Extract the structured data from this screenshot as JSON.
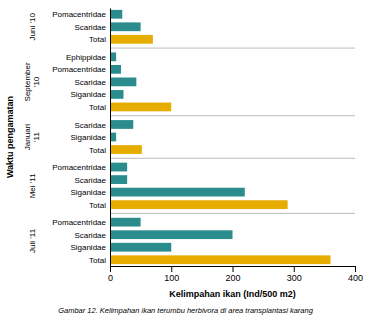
{
  "chart_data": {
    "type": "bar",
    "orientation": "horizontal",
    "groups": [
      {
        "label": "Juni '10",
        "categories": [
          "Pomacentridae",
          "Scaridae",
          "Total"
        ],
        "values": [
          20,
          50,
          70
        ],
        "colors": [
          "#2a8c8c",
          "#2a8c8c",
          "#e6ac00"
        ]
      },
      {
        "label": "September\n'10",
        "categories": [
          "Ephippidae",
          "Pomacentridae",
          "Scaridae",
          "Siganidae",
          "Total"
        ],
        "values": [
          10,
          18,
          43,
          22,
          100
        ],
        "colors": [
          "#2a8c8c",
          "#2a8c8c",
          "#2a8c8c",
          "#2a8c8c",
          "#e6ac00"
        ]
      },
      {
        "label": "Januari\n'11",
        "categories": [
          "Scaridae",
          "Siganidae",
          "Total"
        ],
        "values": [
          38,
          10,
          52
        ],
        "colors": [
          "#2a8c8c",
          "#2a8c8c",
          "#e6ac00"
        ]
      },
      {
        "label": "Mei '11",
        "categories": [
          "Pomacentridae",
          "Scaridae",
          "Siganidae",
          "Total"
        ],
        "values": [
          28,
          28,
          220,
          290
        ],
        "colors": [
          "#2a8c8c",
          "#2a8c8c",
          "#2a8c8c",
          "#e6ac00"
        ]
      },
      {
        "label": "Juli '11",
        "categories": [
          "Pomacentridae",
          "Scaridae",
          "Siganidae",
          "Total"
        ],
        "values": [
          50,
          200,
          100,
          360
        ],
        "colors": [
          "#2a8c8c",
          "#2a8c8c",
          "#2a8c8c",
          "#e6ac00"
        ]
      }
    ],
    "x_label": "Kelimpahan ikan (Ind/500 m2)",
    "y_label": "Waktu pengamatan",
    "caption": "Gambar 12. Kelimpahan ikan terumbu herbivora di area transplantasi karang",
    "xlim": [
      0,
      400
    ],
    "xticks": [
      0,
      100,
      200,
      300,
      400
    ],
    "grid": false
  }
}
